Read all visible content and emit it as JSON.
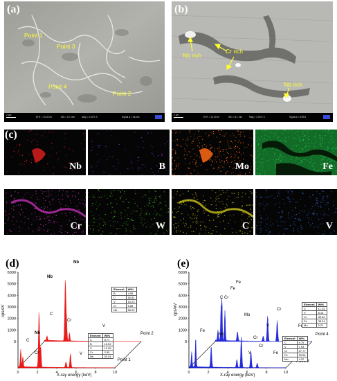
{
  "sem": {
    "a": {
      "letter": "(a)",
      "points": [
        "Point 1",
        "Point 3",
        "Point 4",
        "Point 2"
      ],
      "scale": "2 μm",
      "eht": "EHT = 10.00 kV",
      "wd": "WD = 8.1 mm",
      "mag": "Mag = 4.00 K X",
      "signal": "Signal A = InLens",
      "colors": {
        "label": "#ffff33",
        "bg": "#a9a9a4"
      }
    },
    "b": {
      "letter": "(b)",
      "labels": [
        "Nb rich",
        "Cr rich",
        "Nb rich"
      ],
      "scale": "2 μm",
      "eht": "EHT = 10.00 kV",
      "wd": "WD = 8.1 mm",
      "mag": "Mag = 4.00 K X",
      "signal": "Signal A = ESD1",
      "colors": {
        "label": "#ffff33",
        "bg": "#b5b5b2"
      }
    }
  },
  "maps": {
    "letter": "(c)",
    "elements": [
      {
        "symbol": "Nb",
        "color": "#d81e1e"
      },
      {
        "symbol": "B",
        "color": "#7a2ee0"
      },
      {
        "symbol": "Mo",
        "color": "#ff6a14"
      },
      {
        "symbol": "Fe",
        "color": "#1fbf45"
      },
      {
        "symbol": "Cr",
        "color": "#c22fb8"
      },
      {
        "symbol": "W",
        "color": "#3fb21c"
      },
      {
        "symbol": "C",
        "color": "#c9c21a"
      },
      {
        "symbol": "V",
        "color": "#2f66e0"
      }
    ]
  },
  "chart_data": [
    {
      "type": "area",
      "panel": "(d)",
      "color": "#e8100f",
      "xlabel": "X-ray energy (keV)",
      "ylabel": "cps/eV",
      "xlim": [
        0,
        10
      ],
      "ylim": [
        0,
        6000
      ],
      "xticks": [
        0,
        2,
        4,
        6,
        8,
        10
      ],
      "yticks": [
        0,
        1000,
        2000,
        3000,
        4000,
        5000,
        6000
      ],
      "peaks": [
        {
          "label": "Nb",
          "bold": true,
          "energy": 2.17,
          "point2": 5300,
          "point1": 4800
        },
        {
          "label": "Nb",
          "bold": true,
          "energy": 16.6,
          "point2": 5900,
          "point1": 0
        },
        {
          "label": "C",
          "bold": false,
          "energy": 0.28,
          "point2": 400,
          "point1": 1500
        },
        {
          "label": "Cr",
          "bold": false,
          "energy": 5.41,
          "point2": 300,
          "point1": 1200
        },
        {
          "label": "V",
          "bold": false,
          "energy": 4.95,
          "point2": 320,
          "point1": 500
        }
      ],
      "series": [
        {
          "name": "Point 2",
          "table": {
            "header": [
              "Element",
              "Wt%"
            ],
            "rows": [
              [
                "B",
                "4.99"
              ],
              [
                "C",
                "16.51"
              ],
              [
                "V",
                "10.22"
              ],
              [
                "Cr",
                "5.65"
              ],
              [
                "Nb",
                "55.22"
              ]
            ]
          }
        },
        {
          "name": "Point 1",
          "table": {
            "header": [
              "Element",
              "Wt%"
            ],
            "rows": [
              [
                "C",
                "8.71"
              ],
              [
                "B",
                "15.52"
              ],
              [
                "V",
                "12.05"
              ],
              [
                "Cr",
                "2.55"
              ],
              [
                "Nb",
                "53.04"
              ]
            ]
          }
        }
      ]
    },
    {
      "type": "area",
      "panel": "(e)",
      "color": "#1a22d6",
      "xlabel": "X-ray energy (keV)",
      "ylabel": "cps/eV",
      "xlim": [
        0,
        10
      ],
      "ylim": [
        0,
        6000
      ],
      "xticks": [
        0,
        2,
        4,
        6,
        8,
        10
      ],
      "yticks": [
        0,
        1000,
        2000,
        3000,
        4000,
        5000,
        6000
      ],
      "series": [
        {
          "name": "Point 4",
          "table": {
            "header": [
              "Element",
              "Wt%"
            ],
            "rows": [
              [
                "C",
                "11.23"
              ],
              [
                "V",
                "8.16"
              ],
              [
                "Cr",
                "35.32"
              ],
              [
                "Fe",
                "38.24"
              ],
              [
                "Mo",
                "5.21"
              ]
            ]
          }
        },
        {
          "name": "Point 3",
          "table": {
            "header": [
              "Element",
              "Wt%"
            ],
            "rows": [
              [
                "C",
                "9.75"
              ],
              [
                "V",
                "7.53"
              ],
              [
                "Cr",
                "27.77"
              ],
              [
                "Fe",
                "39.54"
              ],
              [
                "Mo",
                "4.22"
              ]
            ]
          }
        }
      ],
      "peak_labels": [
        "C",
        "Cr",
        "Fe",
        "Fe",
        "Mo",
        "V",
        "Cr",
        "Fe",
        "Fe",
        "Mo",
        "Cr",
        "V",
        "Cr",
        "Fe"
      ]
    }
  ]
}
